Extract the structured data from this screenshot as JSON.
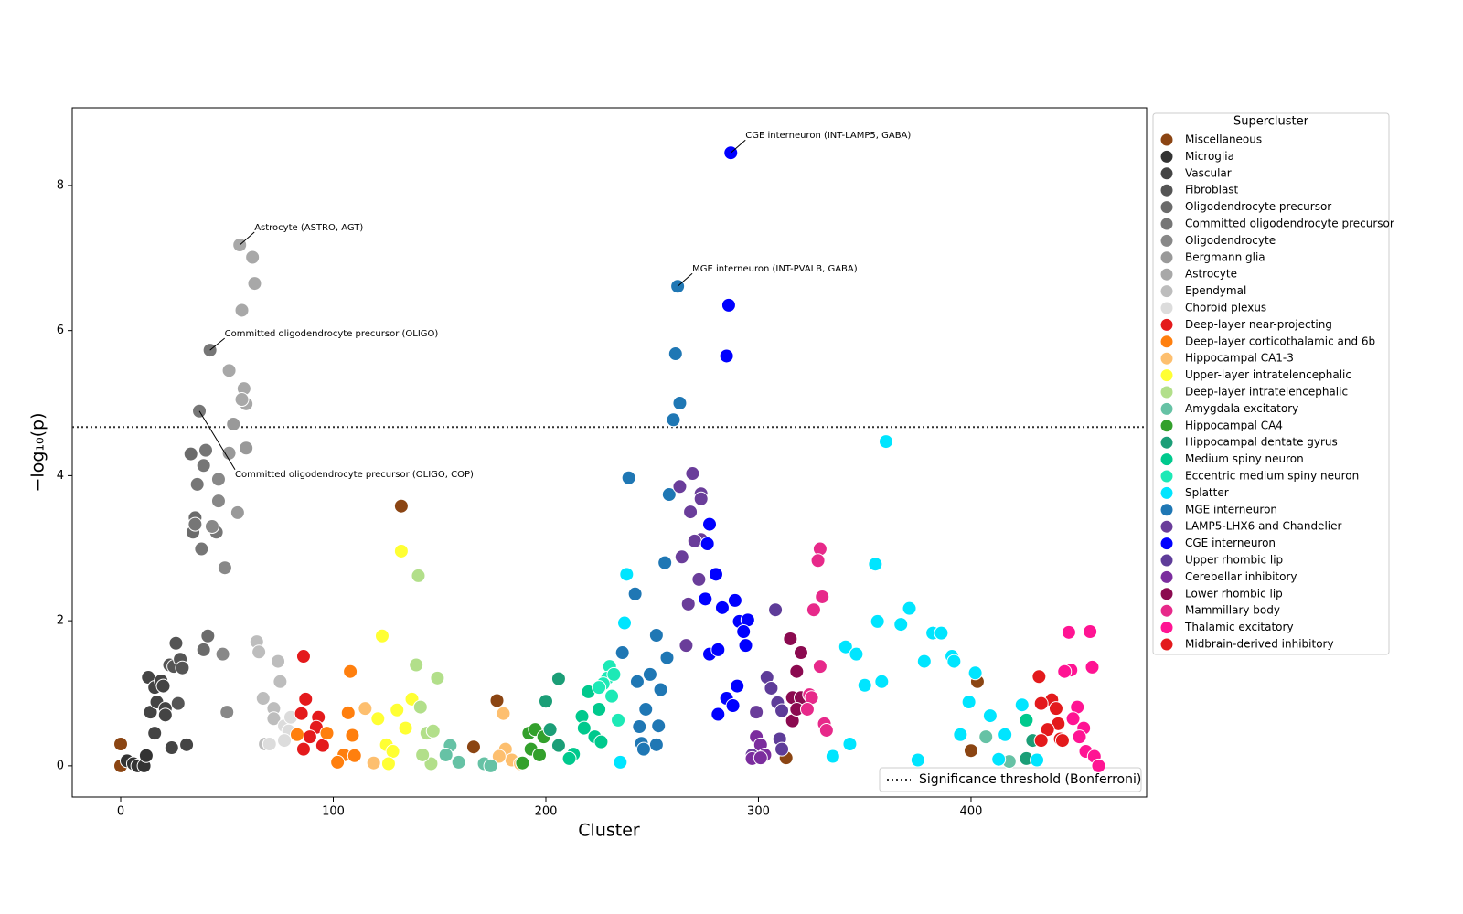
{
  "chart_data": {
    "type": "scatter",
    "x_label": "Cluster",
    "y_label": "−log₁₀(p)",
    "legend_title": "Supercluster",
    "xlim": [
      -22.8,
      482.6
    ],
    "ylim": [
      -0.43,
      9.07
    ],
    "xticks": [
      0,
      100,
      200,
      300,
      400
    ],
    "yticks": [
      0,
      2,
      4,
      6,
      8
    ],
    "threshold": {
      "value": 4.67,
      "label": "Significance threshold (Bonferroni)"
    },
    "annotations": [
      {
        "text": "CGE interneuron (INT-LAMP5, GABA)",
        "x": 287,
        "y": 8.45
      },
      {
        "text": "Astrocyte (ASTRO, AGT)",
        "x": 56,
        "y": 7.18
      },
      {
        "text": "MGE interneuron (INT-PVALB, GABA)",
        "x": 262,
        "y": 6.61
      },
      {
        "text": "Committed oligodendrocyte precursor (OLIGO)",
        "x": 42,
        "y": 5.73
      },
      {
        "text": "Committed oligodendrocyte precursor (OLIGO, COP)",
        "x": 37,
        "y": 4.89
      }
    ],
    "series": [
      {
        "name": "Miscellaneous",
        "color": "#8b4513",
        "x": [
          0,
          0,
          132,
          177,
          403,
          400,
          166,
          313
        ],
        "values": [
          0.3,
          0,
          3.58,
          0.9,
          1.16,
          0.21,
          0.26,
          0.11
        ]
      },
      {
        "name": "Microglia",
        "color": "#333333",
        "x": [
          3,
          6,
          8,
          11,
          12
        ],
        "values": [
          0.07,
          0.03,
          0,
          0,
          0.14
        ]
      },
      {
        "name": "Vascular",
        "color": "#444444",
        "x": [
          13,
          16,
          14,
          17,
          19,
          20,
          21,
          21,
          16,
          24,
          31
        ],
        "values": [
          1.22,
          1.08,
          0.74,
          0.88,
          1.17,
          1.1,
          0.79,
          0.7,
          0.45,
          0.25,
          0.29
        ]
      },
      {
        "name": "Fibroblast",
        "color": "#555555",
        "x": [
          23,
          25,
          28,
          29,
          26,
          27
        ],
        "values": [
          1.39,
          1.37,
          1.47,
          1.35,
          1.69,
          0.86
        ]
      },
      {
        "name": "Oligodendrocyte precursor",
        "color": "#6b6b6b",
        "x": [
          33,
          35,
          34,
          39,
          41
        ],
        "values": [
          4.3,
          3.42,
          3.22,
          1.6,
          1.79
        ]
      },
      {
        "name": "Committed oligodendrocyte precursor",
        "color": "#767676",
        "x": [
          42,
          37,
          36,
          40,
          39,
          35,
          45,
          38
        ],
        "values": [
          5.73,
          4.89,
          3.88,
          4.35,
          4.14,
          3.33,
          3.22,
          2.99
        ]
      },
      {
        "name": "Oligodendrocyte",
        "color": "#888888",
        "x": [
          46,
          46,
          48,
          50,
          49,
          43
        ],
        "values": [
          3.95,
          3.65,
          1.54,
          0.74,
          2.73,
          3.3
        ]
      },
      {
        "name": "Bergmann glia",
        "color": "#999999",
        "x": [
          51,
          55,
          59,
          53
        ],
        "values": [
          4.31,
          3.49,
          4.38,
          4.71
        ]
      },
      {
        "name": "Astrocyte",
        "color": "#a8a8a8",
        "x": [
          56,
          62,
          63,
          57,
          51,
          58,
          59,
          57
        ],
        "values": [
          7.18,
          7.01,
          6.65,
          6.28,
          5.45,
          5.2,
          4.99,
          5.05
        ]
      },
      {
        "name": "Ependymal",
        "color": "#bdbdbd",
        "x": [
          64,
          65,
          74,
          75,
          67,
          72,
          72,
          68
        ],
        "values": [
          1.71,
          1.57,
          1.44,
          1.16,
          0.93,
          0.79,
          0.65,
          0.3
        ]
      },
      {
        "name": "Choroid plexus",
        "color": "#dcdcdc",
        "x": [
          77,
          80,
          79,
          77,
          70
        ],
        "values": [
          0.55,
          0.67,
          0.48,
          0.35,
          0.3
        ]
      },
      {
        "name": "Deep-layer near-projecting",
        "color": "#e41a1c",
        "x": [
          86,
          87,
          93,
          92,
          89,
          86,
          95,
          85
        ],
        "values": [
          1.51,
          0.92,
          0.67,
          0.53,
          0.4,
          0.23,
          0.28,
          0.72
        ]
      },
      {
        "name": "Deep-layer corticothalamic and 6b",
        "color": "#ff7f0e",
        "x": [
          108,
          107,
          97,
          83,
          109,
          105,
          102,
          110
        ],
        "values": [
          1.3,
          0.73,
          0.45,
          0.43,
          0.42,
          0.15,
          0.05,
          0.14
        ]
      },
      {
        "name": "Hippocampal CA1-3",
        "color": "#fdbf6f",
        "x": [
          115,
          119,
          180,
          181,
          184,
          188,
          178
        ],
        "values": [
          0.79,
          0.04,
          0.72,
          0.23,
          0.08,
          0.03,
          0.13
        ]
      },
      {
        "name": "Upper-layer intratelencephalic",
        "color": "#ffff33",
        "x": [
          123,
          132,
          137,
          130,
          134,
          125,
          128,
          126,
          121
        ],
        "values": [
          1.79,
          2.96,
          0.92,
          0.77,
          0.52,
          0.29,
          0.2,
          0.03,
          0.65
        ]
      },
      {
        "name": "Deep-layer intratelencephalic",
        "color": "#b2df8a",
        "x": [
          140,
          139,
          149,
          141,
          144,
          147,
          146,
          142
        ],
        "values": [
          2.62,
          1.39,
          1.21,
          0.81,
          0.45,
          0.48,
          0.03,
          0.15
        ]
      },
      {
        "name": "Amygdala excitatory",
        "color": "#66c2a5",
        "x": [
          155,
          153,
          159,
          171,
          174,
          407,
          418
        ],
        "values": [
          0.28,
          0.15,
          0.05,
          0.03,
          0,
          0.4,
          0.06
        ]
      },
      {
        "name": "Hippocampal CA4",
        "color": "#33a02c",
        "x": [
          192,
          195,
          199,
          189,
          193,
          197
        ],
        "values": [
          0.45,
          0.5,
          0.4,
          0.04,
          0.23,
          0.15
        ]
      },
      {
        "name": "Hippocampal dentate gyrus",
        "color": "#1b9e77",
        "x": [
          206,
          200,
          202,
          206,
          426,
          429
        ],
        "values": [
          1.2,
          0.89,
          0.5,
          0.28,
          0.1,
          0.35
        ]
      },
      {
        "name": "Medium spiny neuron",
        "color": "#00c98d",
        "x": [
          220,
          217,
          218,
          223,
          226,
          213,
          211,
          225,
          426
        ],
        "values": [
          1.02,
          0.68,
          0.52,
          0.4,
          0.33,
          0.16,
          0.1,
          0.78,
          0.63
        ]
      },
      {
        "name": "Eccentric medium spiny neuron",
        "color": "#1de9b6",
        "x": [
          230,
          229,
          227,
          232,
          231,
          234,
          225
        ],
        "values": [
          1.37,
          1.21,
          1.13,
          1.26,
          0.96,
          0.63,
          1.08
        ]
      },
      {
        "name": "Splatter",
        "color": "#00e5ff",
        "x": [
          360,
          355,
          371,
          356,
          367,
          238,
          237,
          235,
          382,
          386,
          341,
          346,
          391,
          378,
          392,
          402,
          350,
          358,
          399,
          409,
          424,
          335,
          343,
          395,
          413,
          431,
          416,
          375
        ],
        "values": [
          4.47,
          2.78,
          2.17,
          1.99,
          1.95,
          2.64,
          1.97,
          0.05,
          1.83,
          1.83,
          1.64,
          1.54,
          1.51,
          1.44,
          1.44,
          1.28,
          1.11,
          1.16,
          0.88,
          0.69,
          0.84,
          0.13,
          0.3,
          0.43,
          0.09,
          0.08,
          0.43,
          0.08
        ]
      },
      {
        "name": "MGE interneuron",
        "color": "#1f77b4",
        "x": [
          262,
          261,
          263,
          260,
          239,
          258,
          256,
          242,
          236,
          252,
          249,
          243,
          257,
          254,
          247,
          244,
          253,
          245,
          252,
          246
        ],
        "values": [
          6.61,
          5.68,
          5.0,
          4.77,
          3.97,
          3.74,
          2.8,
          2.37,
          1.56,
          1.8,
          1.26,
          1.16,
          1.49,
          1.05,
          0.78,
          0.54,
          0.55,
          0.31,
          0.29,
          0.23
        ]
      },
      {
        "name": "LAMP5-LHX6 and Chandelier",
        "color": "#6a3d9a",
        "x": [
          269,
          263,
          273,
          273,
          268,
          273,
          270,
          264,
          272,
          267,
          266,
          299,
          297
        ],
        "values": [
          4.03,
          3.85,
          3.75,
          3.68,
          3.5,
          3.12,
          3.1,
          2.88,
          2.57,
          2.23,
          1.66,
          0.74,
          0.15
        ]
      },
      {
        "name": "CGE interneuron",
        "color": "#0000ff",
        "x": [
          287,
          286,
          285,
          277,
          276,
          280,
          283,
          289,
          275,
          291,
          295,
          293,
          294,
          277,
          281,
          290,
          285,
          288,
          281
        ],
        "values": [
          8.45,
          6.35,
          5.65,
          3.33,
          3.06,
          2.64,
          2.18,
          2.28,
          2.3,
          1.99,
          2.01,
          1.85,
          1.66,
          1.54,
          1.6,
          1.1,
          0.93,
          0.83,
          0.71
        ]
      },
      {
        "name": "Upper rhombic lip",
        "color": "#5e3c99",
        "x": [
          308,
          304,
          306,
          309,
          311,
          310,
          311
        ],
        "values": [
          2.15,
          1.22,
          1.07,
          0.87,
          0.76,
          0.37,
          0.23
        ]
      },
      {
        "name": "Cerebellar inhibitory",
        "color": "#7b2d9e",
        "x": [
          299,
          301,
          297,
          303,
          301
        ],
        "values": [
          0.4,
          0.29,
          0.1,
          0.15,
          0.11
        ]
      },
      {
        "name": "Lower rhombic lip",
        "color": "#8b0a50",
        "x": [
          315,
          320,
          318,
          316,
          320,
          316,
          318
        ],
        "values": [
          1.75,
          1.56,
          1.3,
          0.94,
          0.94,
          0.62,
          0.78
        ]
      },
      {
        "name": "Mammillary body",
        "color": "#e7298a",
        "x": [
          329,
          328,
          330,
          326,
          329,
          324,
          325,
          331,
          332,
          323
        ],
        "values": [
          2.99,
          2.83,
          2.33,
          2.15,
          1.37,
          0.98,
          0.94,
          0.58,
          0.49,
          0.78
        ]
      },
      {
        "name": "Thalamic excitatory",
        "color": "#ff1493",
        "x": [
          446,
          456,
          447,
          457,
          444,
          450,
          453,
          451,
          454,
          458,
          460,
          448
        ],
        "values": [
          1.84,
          1.85,
          1.32,
          1.36,
          1.3,
          0.81,
          0.52,
          0.4,
          0.2,
          0.13,
          0,
          0.65
        ]
      },
      {
        "name": "Midbrain-derived inhibitory",
        "color": "#e31a1c",
        "x": [
          432,
          438,
          433,
          440,
          441,
          436,
          442,
          433,
          443
        ],
        "values": [
          1.23,
          0.91,
          0.86,
          0.79,
          0.58,
          0.5,
          0.37,
          0.35,
          0.35
        ]
      }
    ]
  }
}
